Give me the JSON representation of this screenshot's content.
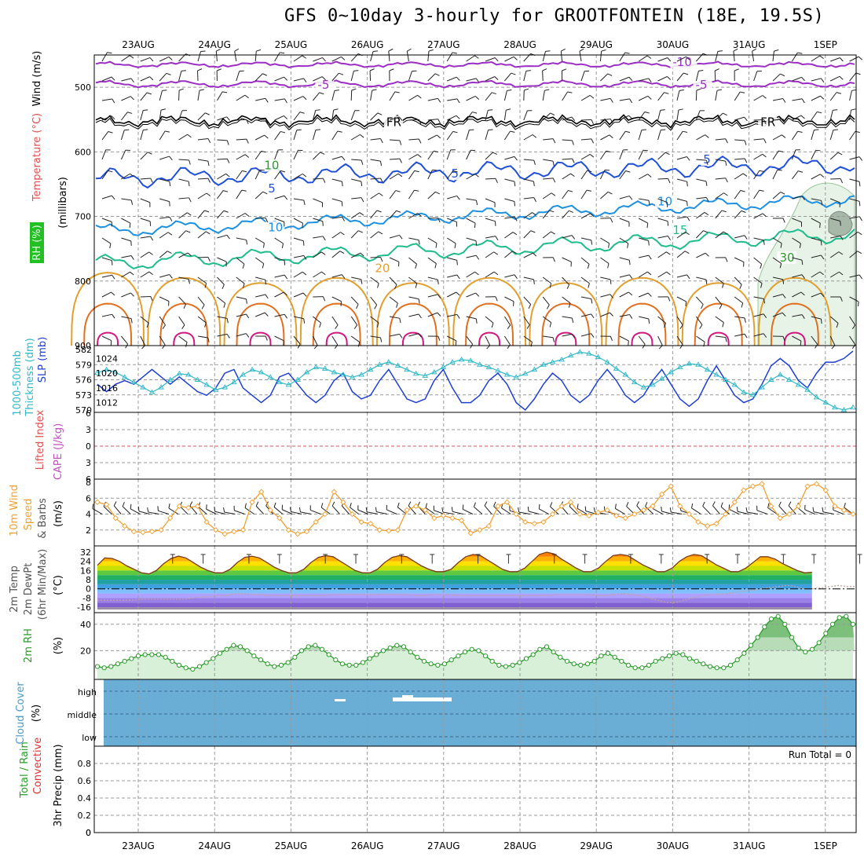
{
  "title": "GFS 0~10day 3-hourly for GROOTFONTEIN (18E, 19.5S)",
  "run_total": "Run Total = 0",
  "colors": {
    "temp_contour_neg": "#9b2fc4",
    "freezing": "#000000",
    "t5": "#1f4fd6",
    "t10": "#1e90e0",
    "t15": "#1ebc8c",
    "t20": "#e0a030",
    "t25": "#e07020",
    "t30": "#d01880",
    "slp": "#1f3fd0",
    "thickness": "#30b8c8",
    "wind10": "#f0a030",
    "rh_line": "#2a9a2a",
    "cloud": "#6aaed6",
    "rh_fill": "#d8f0d8"
  },
  "chart_data": [
    {
      "type": "contour",
      "panel": "upper-air",
      "xlabel": "",
      "ylabel": "(millibars)",
      "side_labels": [
        "RH (%)",
        "Temperature (°C)",
        "Wind (m/s)"
      ],
      "x_ticks": [
        "23AUG",
        "24AUG",
        "25AUG",
        "26AUG",
        "27AUG",
        "28AUG",
        "29AUG",
        "30AUG",
        "31AUG",
        "1SEP"
      ],
      "y_ticks": [
        500,
        600,
        700,
        800,
        900
      ],
      "ylim": [
        450,
        900
      ],
      "contour_labels": [
        {
          "text": "-10",
          "color": "temp_contour_neg",
          "t": 7.0,
          "p": 467
        },
        {
          "text": "-5",
          "color": "temp_contour_neg",
          "t": 2.35,
          "p": 502
        },
        {
          "text": "-5",
          "color": "temp_contour_neg",
          "t": 7.3,
          "p": 502
        },
        {
          "text": "FR",
          "color": "freezing",
          "t": 3.25,
          "p": 560
        },
        {
          "text": "FR",
          "color": "freezing",
          "t": 8.15,
          "p": 560
        },
        {
          "text": "5",
          "color": "t5",
          "t": 1.7,
          "p": 663
        },
        {
          "text": "5",
          "color": "t5",
          "t": 4.1,
          "p": 640
        },
        {
          "text": "5",
          "color": "t5",
          "t": 7.4,
          "p": 618
        },
        {
          "text": "10",
          "color": "t10",
          "t": 1.7,
          "p": 723
        },
        {
          "text": "10",
          "color": "t10",
          "t": 6.8,
          "p": 683
        },
        {
          "text": "10",
          "color": "t5",
          "t": 9.5,
          "p": 693
        },
        {
          "text": "15",
          "color": "t15",
          "t": 7.0,
          "p": 727
        },
        {
          "text": "20",
          "color": "t20",
          "t": 3.1,
          "p": 786
        },
        {
          "text": "10",
          "color": "rh_line",
          "t": 1.65,
          "p": 627
        },
        {
          "text": "30",
          "color": "rh_line",
          "t": 8.4,
          "p": 770
        }
      ]
    },
    {
      "type": "line",
      "panel": "slp-thickness",
      "side_labels": [
        "1000-500mb",
        "Thickness (dm)",
        "SLP (mb)"
      ],
      "y_ticks_left": [
        582,
        579,
        576,
        573,
        570
      ],
      "y_ticks_right": [
        1024,
        1020,
        1016,
        1012
      ],
      "series": [
        {
          "color": "slp",
          "axis": "right",
          "values": [
            1017,
            1015,
            1017,
            1018,
            1017,
            1019,
            1021,
            1019,
            1017,
            1019,
            1017,
            1015,
            1014,
            1016,
            1020,
            1021,
            1016,
            1014,
            1012,
            1014,
            1019,
            1020,
            1017,
            1014,
            1012,
            1014,
            1018,
            1020,
            1015,
            1013,
            1014,
            1018,
            1021,
            1017,
            1013,
            1012,
            1013,
            1018,
            1021,
            1016,
            1012,
            1012,
            1014,
            1018,
            1020,
            1017,
            1012,
            1010,
            1013,
            1017,
            1020,
            1018,
            1014,
            1012,
            1014,
            1018,
            1021,
            1018,
            1014,
            1012,
            1014,
            1018,
            1021,
            1017,
            1013,
            1011,
            1013,
            1018,
            1022,
            1018,
            1014,
            1012,
            1013,
            1017,
            1022,
            1024,
            1022,
            1018,
            1016,
            1020,
            1023,
            1023,
            1024,
            1026
          ]
        },
        {
          "color": "thickness",
          "axis": "left",
          "markers": "triangle",
          "values": [
            577.4,
            578.0,
            577.5,
            576.5,
            575.5,
            574.5,
            573.5,
            574.5,
            576.0,
            577.2,
            577.0,
            576.0,
            575.0,
            574.0,
            574.5,
            575.5,
            577.0,
            578.0,
            577.5,
            576.5,
            575.5,
            575.0,
            576.0,
            577.5,
            578.5,
            578.2,
            577.5,
            577.0,
            576.5,
            577.0,
            578.0,
            579.0,
            579.5,
            578.8,
            578.0,
            577.2,
            576.8,
            577.5,
            578.5,
            579.5,
            580.0,
            579.8,
            579.0,
            578.5,
            577.8,
            577.0,
            576.5,
            577.2,
            578.0,
            579.0,
            579.5,
            580.0,
            580.8,
            581.5,
            581.2,
            580.5,
            579.5,
            578.2,
            577.0,
            575.5,
            574.5,
            575.0,
            576.2,
            577.5,
            578.5,
            579.2,
            579.0,
            578.0,
            577.0,
            576.0,
            575.0,
            573.5,
            573.0,
            574.5,
            576.0,
            577.0,
            576.0,
            575.0,
            574.0,
            572.5,
            571.5,
            570.5,
            570.0,
            570.5
          ]
        }
      ]
    },
    {
      "type": "line",
      "panel": "li-cape",
      "side_labels": [
        "Lifted Index",
        "CAPE (J/kg)"
      ],
      "y_ticks": [
        -6,
        -3,
        0,
        3,
        6
      ],
      "zero_line": true
    },
    {
      "type": "line",
      "panel": "wind10",
      "side_labels": [
        "10m Wind",
        "Speed",
        "& Barbs",
        "(m/s)"
      ],
      "y_ticks": [
        2,
        4,
        6,
        8
      ],
      "series": [
        {
          "color": "wind10",
          "markers": "diamond",
          "values": [
            5.5,
            5.2,
            3.5,
            2.5,
            1.8,
            1.7,
            1.8,
            2.0,
            3.5,
            5.0,
            4.8,
            5.0,
            3.0,
            2.0,
            1.5,
            1.8,
            2.0,
            5.5,
            6.8,
            4.5,
            3.5,
            2.0,
            1.5,
            1.8,
            3.0,
            4.0,
            6.8,
            5.5,
            4.0,
            3.0,
            2.8,
            2.0,
            1.9,
            2.0,
            4.5,
            5.0,
            4.5,
            3.5,
            3.8,
            3.5,
            3.2,
            1.6,
            2.0,
            2.5,
            5.0,
            5.5,
            4.0,
            3.0,
            2.8,
            3.0,
            4.0,
            5.0,
            5.5,
            4.0,
            3.8,
            4.2,
            4.5,
            3.8,
            3.5,
            4.0,
            4.5,
            5.0,
            6.5,
            7.5,
            5.0,
            4.0,
            3.0,
            2.5,
            2.8,
            4.0,
            5.5,
            7.0,
            7.5,
            7.8,
            5.0,
            3.5,
            4.0,
            5.0,
            7.5,
            7.8,
            7.0,
            5.0,
            4.5,
            4.0
          ]
        }
      ]
    },
    {
      "type": "area",
      "panel": "temperature-2m",
      "side_labels": [
        "2m Temp",
        "2m DewPt",
        "(6hr Min/Max)",
        "(°C)"
      ],
      "y_ticks": [
        32,
        24,
        16,
        8,
        0,
        -8,
        -16
      ],
      "series": [
        {
          "name": "",
          "values": [
            20.5,
            27,
            26.5,
            24,
            20,
            17,
            14,
            13,
            16,
            22,
            26.5,
            28.5,
            27,
            23,
            19,
            16,
            14,
            14,
            17,
            23,
            27.5,
            28.5,
            27,
            23,
            19,
            16,
            14,
            14,
            17,
            23,
            27.5,
            29,
            28,
            24,
            20,
            16,
            14,
            14,
            17,
            23,
            27.5,
            29,
            28,
            24,
            20,
            17,
            15,
            15,
            17,
            23,
            28,
            30,
            29,
            25,
            21,
            17,
            15,
            15,
            18,
            24,
            30,
            32,
            30.5,
            26,
            22,
            18,
            15,
            15,
            18,
            24,
            29,
            30,
            29,
            25,
            21,
            18,
            15,
            15,
            18,
            24,
            28,
            30,
            29,
            25,
            21,
            18,
            15,
            15,
            18,
            23,
            28,
            28,
            26,
            22,
            19,
            16,
            14,
            14.5
          ]
        },
        {
          "name": "",
          "values": [
            -10,
            -10,
            -10,
            -10,
            -10,
            -9,
            -9,
            -9,
            -9,
            -9,
            -9,
            -8,
            -7,
            -7,
            -6,
            -6,
            -4,
            -4,
            -5,
            -5,
            -6,
            -6,
            -6,
            -6,
            -6,
            -6,
            -6,
            -5,
            -5,
            -5,
            -5,
            -5,
            -5,
            -5,
            -5,
            -5,
            -5,
            -6,
            -6,
            -5,
            -5,
            -5,
            -6,
            -6,
            -6,
            -6,
            -6,
            -6,
            -6,
            -6,
            -6,
            -6,
            -6,
            -5,
            -5,
            -5,
            -5,
            -5,
            -6,
            -6,
            -5,
            -4,
            -5,
            -6,
            -8,
            -10,
            -12,
            -12,
            -10,
            -8,
            -6,
            -5,
            -5,
            -4,
            -3,
            -2,
            -1,
            0,
            1,
            2,
            3,
            2,
            0,
            0,
            1,
            2,
            3,
            2,
            2
          ]
        }
      ]
    },
    {
      "type": "line",
      "panel": "rh-2m",
      "side_labels": [
        "2m RH",
        "(%)"
      ],
      "y_ticks": [
        20,
        40
      ],
      "series": [
        {
          "color": "rh_line",
          "markers": "circle",
          "values": [
            8,
            7,
            8,
            10,
            12,
            14,
            16,
            17,
            17,
            17,
            15,
            12,
            9,
            7,
            6,
            8,
            11,
            14,
            18,
            21,
            24,
            23,
            20,
            16,
            13,
            10,
            8,
            9,
            11,
            15,
            20,
            23,
            24,
            21,
            17,
            13,
            10,
            9,
            9,
            11,
            14,
            17,
            20,
            22,
            24,
            23,
            19,
            15,
            12,
            10,
            9,
            10,
            13,
            16,
            19,
            21,
            20,
            16,
            12,
            9,
            8,
            9,
            11,
            14,
            17,
            21,
            23,
            19,
            15,
            12,
            10,
            9,
            10,
            12,
            16,
            18,
            15,
            12,
            9,
            7,
            7,
            9,
            12,
            14,
            16,
            18,
            17,
            14,
            12,
            10,
            8,
            7,
            7,
            9,
            13,
            18,
            24,
            30,
            38,
            44,
            46,
            40,
            30,
            22,
            19,
            21,
            26,
            33,
            40,
            45,
            46,
            40
          ]
        }
      ]
    },
    {
      "type": "area",
      "panel": "cloud-cover",
      "side_labels": [
        "Cloud Cover",
        "(%)"
      ],
      "y_ticks": [
        "high",
        "middle",
        "low"
      ]
    },
    {
      "type": "bar",
      "panel": "precip",
      "side_labels": [
        "Total / Rain",
        "Convective",
        "3hr Precip (mm)"
      ],
      "y_ticks": [
        0,
        0.2,
        0.4,
        0.6,
        0.8
      ],
      "ylim": [
        0,
        1
      ],
      "values": []
    }
  ]
}
